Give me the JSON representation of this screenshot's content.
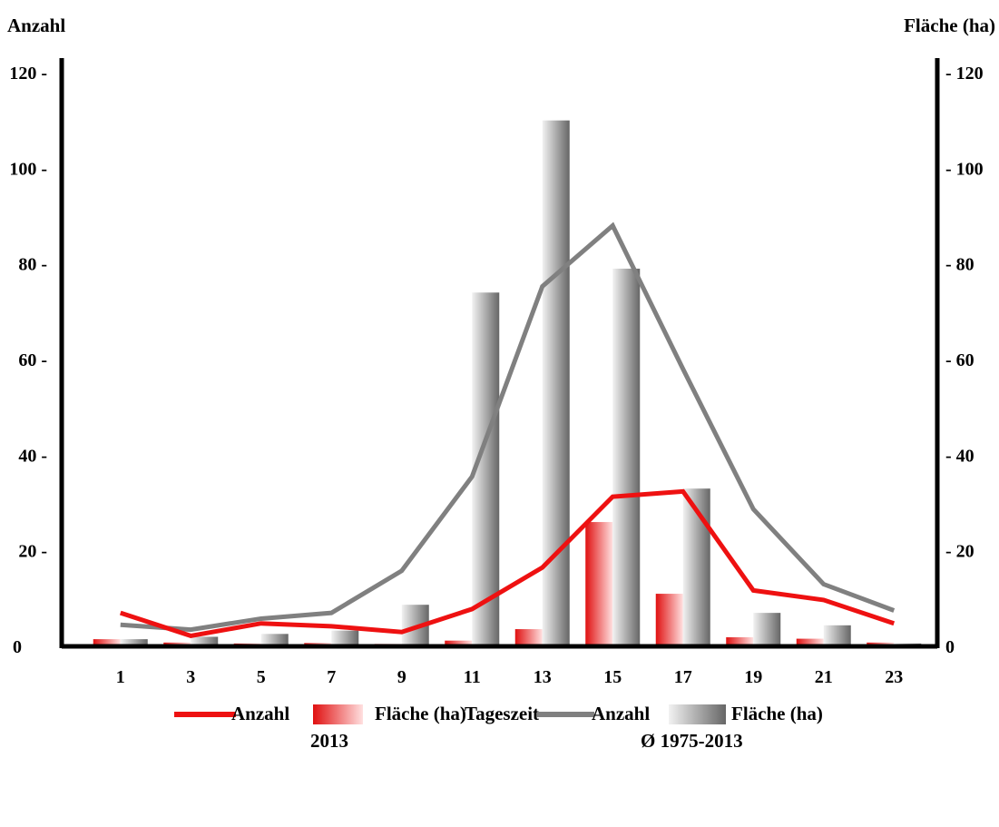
{
  "chart_data": {
    "type": "bar",
    "xlabel": "Tageszeit",
    "ylabel_left": "Anzahl",
    "ylabel_right": "Fläche (ha)",
    "categories": [
      "1",
      "3",
      "5",
      "7",
      "9",
      "11",
      "13",
      "15",
      "17",
      "19",
      "21",
      "23"
    ],
    "ylim": [
      0,
      120
    ],
    "yticks": [
      0,
      20,
      40,
      60,
      80,
      100,
      120
    ],
    "colors": {
      "red": "#ee1111",
      "gray": "#808080"
    },
    "series": [
      {
        "key": "flaeche_2013",
        "kind": "bar",
        "color": "red",
        "values": [
          1.5,
          0.8,
          0.6,
          0.7,
          0.5,
          1.2,
          3.6,
          26.0,
          11.0,
          1.9,
          1.6,
          0.8
        ]
      },
      {
        "key": "flaeche_avg",
        "kind": "bar",
        "color": "gray",
        "values": [
          1.5,
          2.0,
          2.6,
          3.3,
          8.7,
          74.0,
          110.0,
          79.0,
          33.0,
          7.0,
          4.4,
          0.6
        ]
      },
      {
        "key": "anzahl_avg",
        "kind": "line",
        "color": "gray",
        "values": [
          4.5,
          3.5,
          5.8,
          7.0,
          15.8,
          35.5,
          75.3,
          88.0,
          58.0,
          28.7,
          13.0,
          7.5
        ]
      },
      {
        "key": "anzahl_2013",
        "kind": "line",
        "color": "red",
        "values": [
          7.0,
          2.2,
          4.8,
          4.2,
          3.0,
          7.8,
          16.5,
          31.3,
          32.4,
          11.7,
          9.7,
          4.8
        ]
      }
    ],
    "legend": {
      "placement": "bottom",
      "group_2013": {
        "line_label": "Anzahl",
        "bar_label": "Fläche (ha)",
        "caption": "2013"
      },
      "group_avg": {
        "line_label": "Anzahl",
        "bar_label": "Fläche (ha)",
        "caption": "Ø 1975-2013"
      }
    }
  }
}
